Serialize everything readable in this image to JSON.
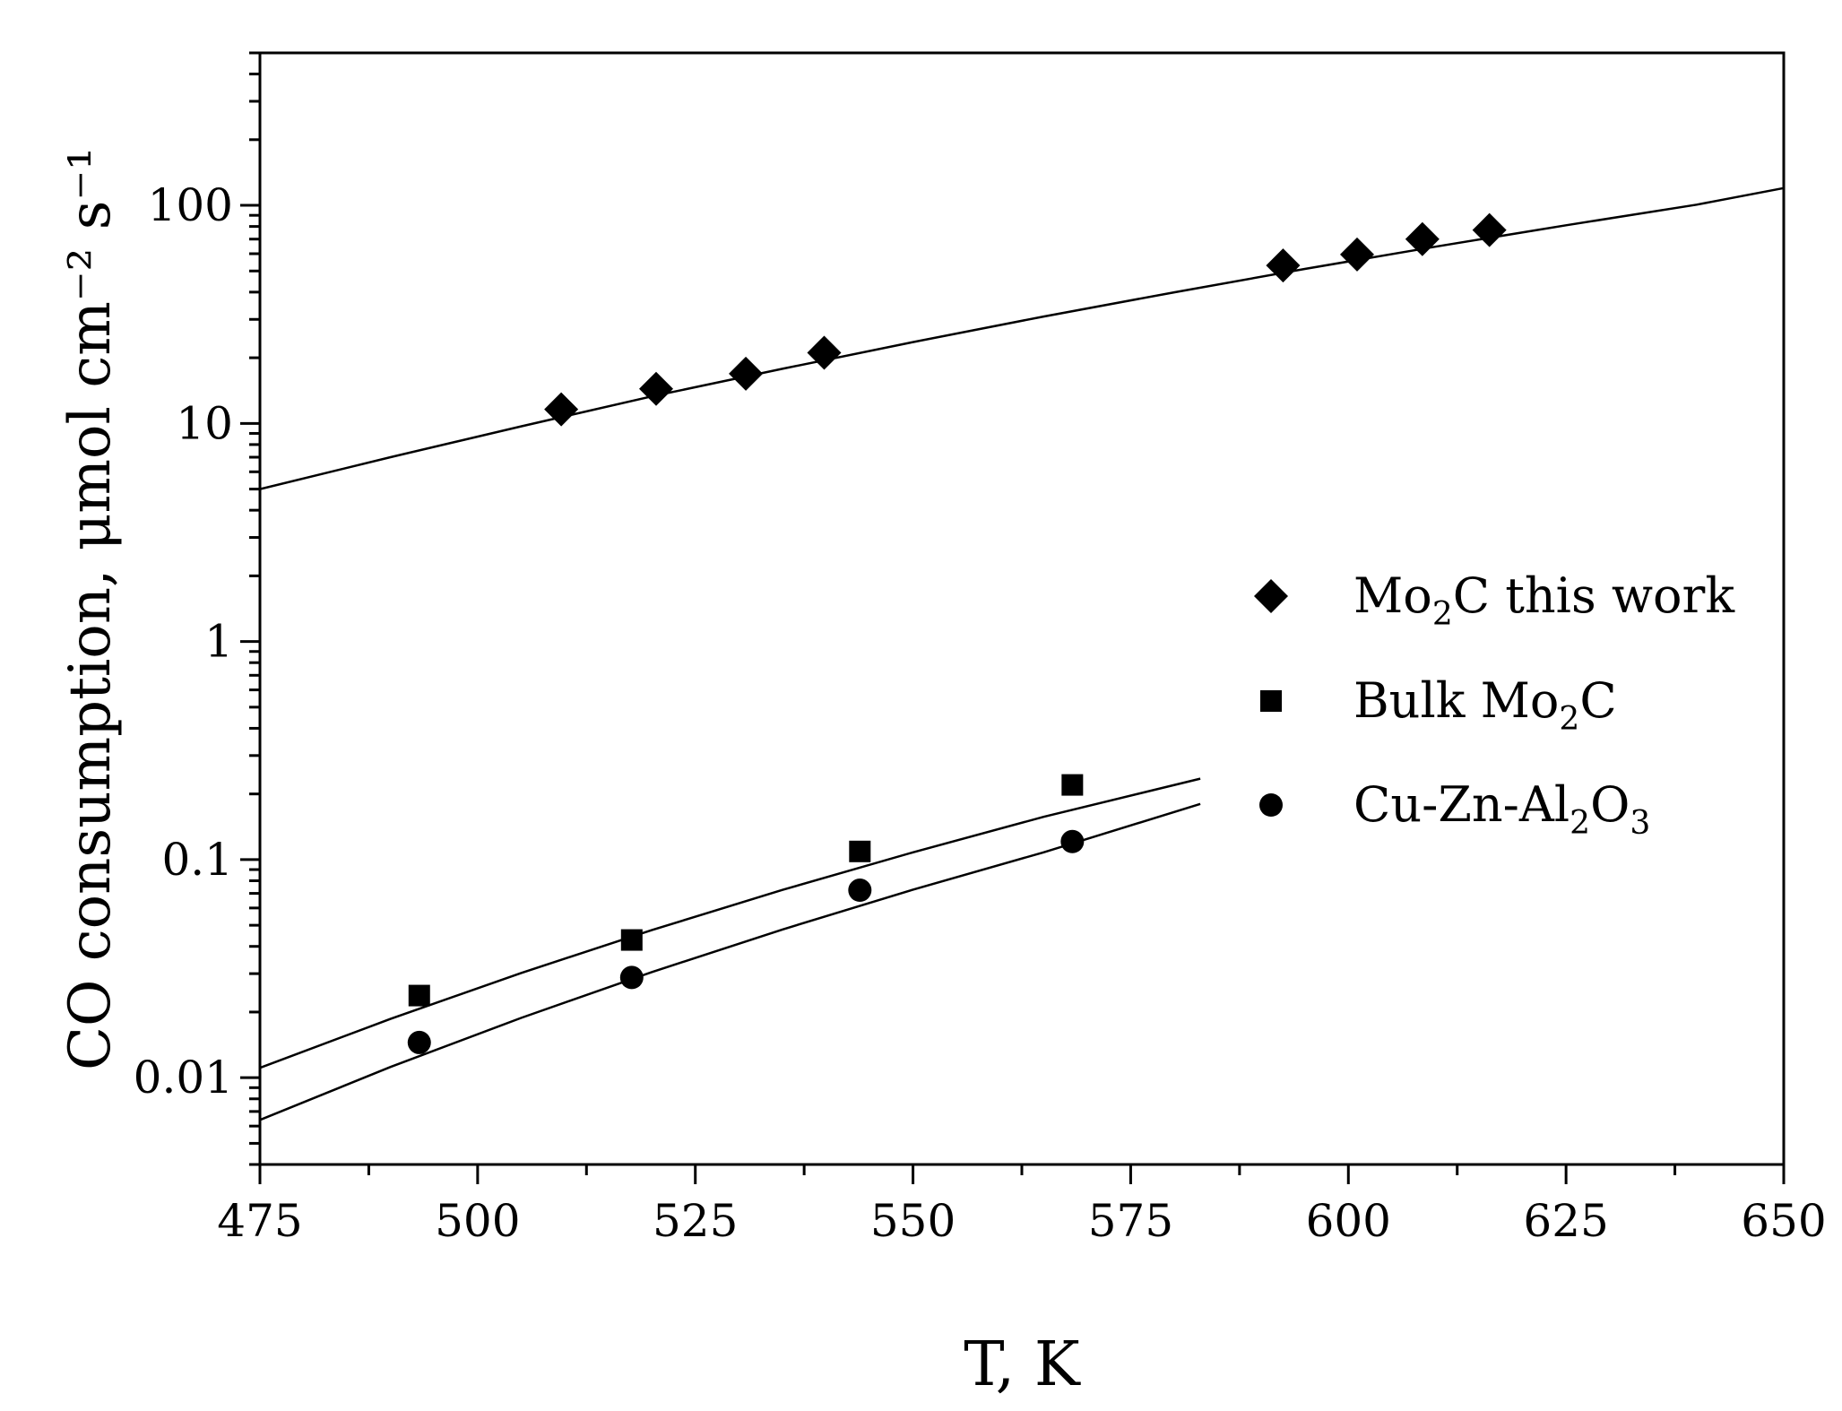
{
  "chart_data": {
    "type": "scatter",
    "xlabel": "T, K",
    "ylabel": "CO consumption, μmol cm⁻² s⁻¹",
    "xlim": [
      475,
      650
    ],
    "ylim": [
      0.004,
      500
    ],
    "yscale": "log",
    "x_ticks": [
      475,
      500,
      525,
      550,
      575,
      600,
      625,
      650
    ],
    "y_ticks": [
      0.01,
      0.1,
      1,
      10,
      100
    ],
    "y_tick_labels": [
      "0.01",
      "0.1",
      "1",
      "10",
      "100"
    ],
    "grid": false,
    "legend_position": "center-right",
    "series": [
      {
        "name": "Mo2C this work",
        "label_main": "Mo",
        "label_sub": "2",
        "label_rest": "C this work",
        "marker": "diamond",
        "x": [
          509.6,
          520.5,
          530.8,
          539.8,
          592.5,
          601.0,
          608.5,
          616.2
        ],
        "y": [
          11.6,
          14.4,
          16.9,
          21.1,
          53,
          59.5,
          70,
          77
        ],
        "fit_x": [
          475,
          490,
          505,
          520,
          535,
          550,
          565,
          580,
          595,
          610,
          625,
          640,
          650
        ],
        "fit_y": [
          5.0,
          7.0,
          9.7,
          13.3,
          17.8,
          23.6,
          30.9,
          39.9,
          51.1,
          64.6,
          81.0,
          100.7,
          120
        ]
      },
      {
        "name": "Bulk Mo2C",
        "label_main": "Bulk Mo",
        "label_sub": "2",
        "label_rest": "C",
        "marker": "square",
        "x": [
          493.3,
          517.7,
          543.9,
          568.3
        ],
        "y": [
          0.0238,
          0.0428,
          0.109,
          0.22
        ],
        "fit_x": [
          475,
          490,
          505,
          520,
          535,
          550,
          565,
          583
        ],
        "fit_y": [
          0.0111,
          0.0186,
          0.0302,
          0.0475,
          0.0726,
          0.108,
          0.157,
          0.235
        ]
      },
      {
        "name": "Cu-Zn-Al2O3",
        "label_main": "Cu-Zn-Al",
        "label_sub": "2",
        "label_rest": "O",
        "label_sub2": "3",
        "marker": "circle",
        "x": [
          493.3,
          517.7,
          543.9,
          568.3
        ],
        "y": [
          0.0145,
          0.0288,
          0.0724,
          0.121
        ],
        "fit_x": [
          475,
          490,
          505,
          520,
          535,
          550,
          565,
          583
        ],
        "fit_y": [
          0.0064,
          0.0112,
          0.0188,
          0.0305,
          0.0478,
          0.0728,
          0.108,
          0.18
        ]
      }
    ]
  }
}
